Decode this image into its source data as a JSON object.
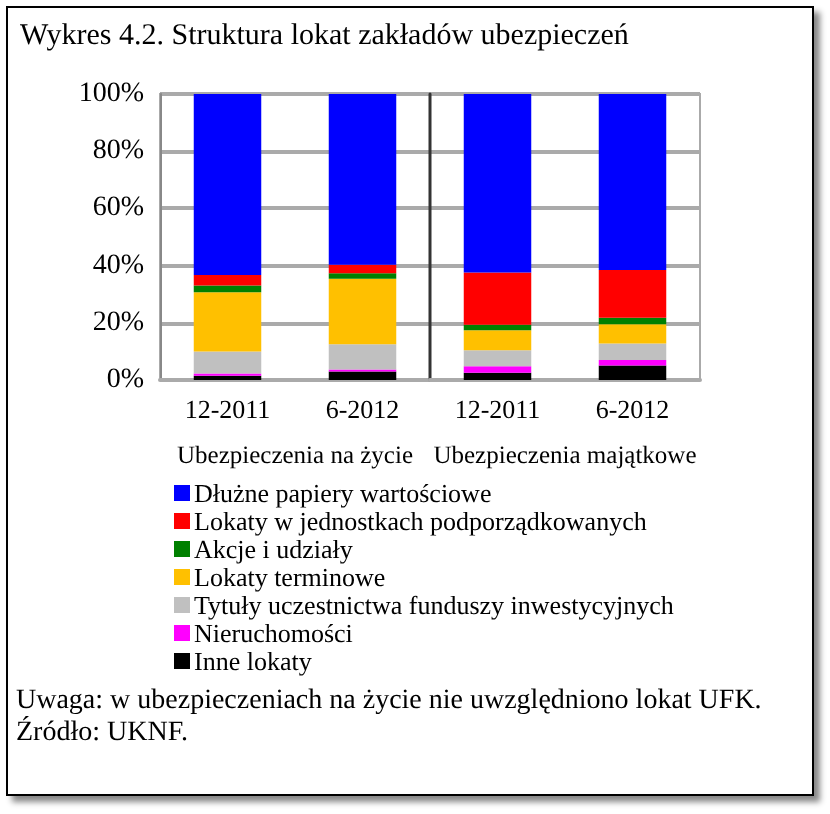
{
  "chart_data": [
    {
      "type": "bar",
      "title": "Wykres 4.2. Struktura lokat zakładów ubezpieczeń",
      "categories": [
        "12-2011",
        "6-2012"
      ],
      "xlabel": "Ubezpieczenia na życie",
      "stacked": true,
      "ylim": [
        0,
        100
      ],
      "yticks": [
        {
          "value": 0,
          "label": "0%"
        },
        {
          "value": 20,
          "label": "20%"
        },
        {
          "value": 40,
          "label": "40%"
        },
        {
          "value": 60,
          "label": "60%"
        },
        {
          "value": 80,
          "label": "80%"
        },
        {
          "value": 100,
          "label": "100%"
        }
      ],
      "grid": "y",
      "legend": "bottom",
      "series": [
        {
          "name": "Inne lokaty",
          "color": "#000000",
          "values": [
            1.5,
            3.0
          ]
        },
        {
          "name": "Nieruchomości",
          "color": "#ff00ff",
          "values": [
            0.8,
            0.7
          ]
        },
        {
          "name": "Tytuły uczestnictwa funduszy inwestycyjnych",
          "color": "#c0c0c0",
          "values": [
            7.7,
            8.8
          ]
        },
        {
          "name": "Lokaty terminowe",
          "color": "#ffc000",
          "values": [
            20.7,
            22.9
          ]
        },
        {
          "name": "Akcje i udziały",
          "color": "#008000",
          "values": [
            2.3,
            1.9
          ]
        },
        {
          "name": "Lokaty w jednostkach podporządkowanych",
          "color": "#ff0000",
          "values": [
            3.7,
            3.0
          ]
        },
        {
          "name": "Dłużne papiery wartościowe",
          "color": "#0000ff",
          "values": [
            63.3,
            59.7
          ]
        }
      ],
      "annotations": [
        "Uwaga: w ubezpieczeniach na życie nie uwzględniono lokat UFK.",
        "Źródło: UKNF."
      ]
    },
    {
      "type": "bar",
      "categories": [
        "12-2011",
        "6-2012"
      ],
      "xlabel": "Ubezpieczenia majątkowe",
      "stacked": true,
      "ylim": [
        0,
        100
      ],
      "yticks": [
        0,
        20,
        40,
        60,
        80,
        100
      ],
      "grid": "y",
      "tick_labels": "x",
      "series": [
        {
          "color": "#000000",
          "values": [
            2.5,
            5.1
          ]
        },
        {
          "color": "#ff00ff",
          "values": [
            2.3,
            1.9
          ]
        },
        {
          "color": "#c0c0c0",
          "values": [
            5.6,
            5.8
          ]
        },
        {
          "color": "#ffc000",
          "values": [
            7.0,
            6.7
          ]
        },
        {
          "color": "#008000",
          "values": [
            1.9,
            2.3
          ]
        },
        {
          "color": "#ff0000",
          "values": [
            18.3,
            16.7
          ]
        },
        {
          "color": "#0000ff",
          "values": [
            62.4,
            61.5
          ]
        }
      ]
    }
  ]
}
